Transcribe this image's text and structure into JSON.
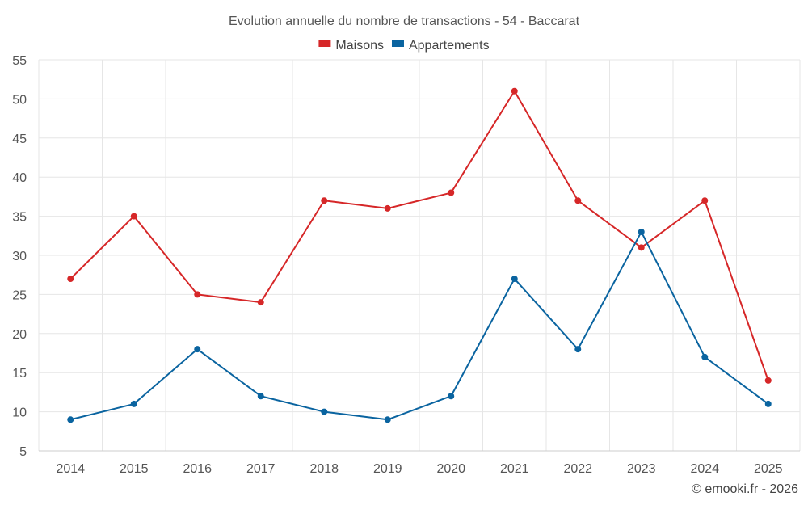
{
  "chart_data": {
    "type": "line",
    "title": "Evolution annuelle du nombre de transactions - 54 - Baccarat",
    "xlabel": "",
    "ylabel": "",
    "categories": [
      "2014",
      "2015",
      "2016",
      "2017",
      "2018",
      "2019",
      "2020",
      "2021",
      "2022",
      "2023",
      "2024",
      "2025"
    ],
    "ylim": [
      5,
      55
    ],
    "yticks": [
      5,
      10,
      15,
      20,
      25,
      30,
      35,
      40,
      45,
      50,
      55
    ],
    "grid": true,
    "legend_position": "top-center",
    "series": [
      {
        "name": "Maisons",
        "color": "#d62728",
        "values": [
          27,
          35,
          25,
          24,
          37,
          36,
          38,
          51,
          37,
          31,
          37,
          14
        ]
      },
      {
        "name": "Appartements",
        "color": "#0a64a0",
        "values": [
          9,
          11,
          18,
          12,
          10,
          9,
          12,
          27,
          18,
          33,
          17,
          11
        ]
      }
    ]
  },
  "credit": "© emooki.fr - 2026"
}
